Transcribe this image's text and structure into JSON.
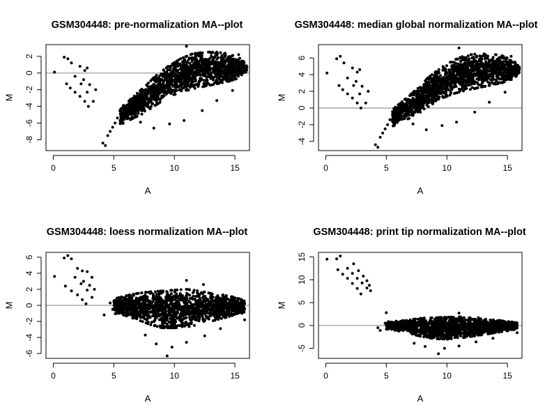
{
  "chart_data": [
    {
      "type": "scatter",
      "title": "GSM304448: pre-normalization MA--plot",
      "xlabel": "A",
      "ylabel": "M",
      "xlim": [
        -0.6,
        16.2
      ],
      "ylim": [
        -9.3,
        3.4
      ],
      "xticks": [
        0,
        5,
        10,
        15
      ],
      "yticks": [
        -8,
        -6,
        -4,
        -2,
        0,
        2
      ],
      "hline": 0,
      "series": [
        {
          "points": [
            [
              0.1,
              0.1
            ],
            [
              0.9,
              1.9
            ],
            [
              1.2,
              1.7
            ],
            [
              1.5,
              1.2
            ],
            [
              2.2,
              0.8
            ],
            [
              2.6,
              0.3
            ],
            [
              2.8,
              0.6
            ],
            [
              1.1,
              -1.3
            ],
            [
              1.4,
              -1.8
            ],
            [
              1.8,
              -2.3
            ],
            [
              2.2,
              -2.8
            ],
            [
              2.6,
              -3.4
            ],
            [
              2.9,
              -4.0
            ],
            [
              1.8,
              -0.4
            ],
            [
              2.3,
              -1.3
            ],
            [
              2.8,
              -2.3
            ],
            [
              3.3,
              -3.4
            ],
            [
              2.5,
              -0.8
            ],
            [
              3.0,
              -1.4
            ],
            [
              3.5,
              -2.0
            ],
            [
              4.1,
              -8.4
            ],
            [
              4.3,
              -8.7
            ],
            [
              4.5,
              -7.5
            ],
            [
              4.7,
              -7.0
            ],
            [
              4.9,
              -6.5
            ],
            [
              5.1,
              -6.0
            ],
            [
              5.3,
              -5.4
            ],
            [
              7.2,
              -5.9
            ],
            [
              8.3,
              -6.6
            ],
            [
              9.6,
              -6.1
            ],
            [
              10.8,
              -5.7
            ],
            [
              12.3,
              -4.5
            ],
            [
              13.5,
              -3.3
            ],
            [
              14.8,
              -2.1
            ],
            [
              11.0,
              3.2
            ],
            [
              12.2,
              2.1
            ],
            [
              15.3,
              2.2
            ]
          ]
        },
        {
          "band_x": [
            5.5,
            6.5,
            7.5,
            8.5,
            9.5,
            10.5,
            11.5,
            12.5,
            13.5,
            14.5,
            15.5,
            16.0
          ],
          "band_lo": [
            -6.2,
            -5.5,
            -4.8,
            -3.8,
            -2.9,
            -2.3,
            -1.9,
            -1.6,
            -1.3,
            -1.0,
            -0.5,
            0.2
          ],
          "band_hi": [
            -4.2,
            -3.0,
            -1.7,
            -0.3,
            0.8,
            1.7,
            2.3,
            2.5,
            2.5,
            2.3,
            1.7,
            0.9
          ]
        }
      ]
    },
    {
      "type": "scatter",
      "title": "GSM304448: median global normalization MA--plot",
      "xlabel": "A",
      "ylabel": "M",
      "xlim": [
        -0.6,
        16.2
      ],
      "ylim": [
        -5.1,
        7.6
      ],
      "xticks": [
        0,
        5,
        10,
        15
      ],
      "yticks": [
        -4,
        -2,
        0,
        2,
        4,
        6
      ],
      "hline": 0,
      "series": [
        {
          "points": [
            [
              0.1,
              4.2
            ],
            [
              0.9,
              5.9
            ],
            [
              1.2,
              6.2
            ],
            [
              1.5,
              5.4
            ],
            [
              2.2,
              4.8
            ],
            [
              2.6,
              4.3
            ],
            [
              2.8,
              4.6
            ],
            [
              1.1,
              2.7
            ],
            [
              1.4,
              2.2
            ],
            [
              1.8,
              1.7
            ],
            [
              2.2,
              1.2
            ],
            [
              2.6,
              0.6
            ],
            [
              2.9,
              0.0
            ],
            [
              1.8,
              3.6
            ],
            [
              2.3,
              2.7
            ],
            [
              2.8,
              1.7
            ],
            [
              3.3,
              0.6
            ],
            [
              2.5,
              3.2
            ],
            [
              3.0,
              2.6
            ],
            [
              3.5,
              2.0
            ],
            [
              4.1,
              -4.4
            ],
            [
              4.3,
              -4.7
            ],
            [
              4.5,
              -3.5
            ],
            [
              4.7,
              -3.0
            ],
            [
              4.9,
              -2.5
            ],
            [
              5.1,
              -2.0
            ],
            [
              5.3,
              -1.4
            ],
            [
              7.2,
              -1.9
            ],
            [
              8.3,
              -2.6
            ],
            [
              9.6,
              -2.1
            ],
            [
              10.8,
              -1.7
            ],
            [
              12.3,
              -0.5
            ],
            [
              13.5,
              0.7
            ],
            [
              14.8,
              1.9
            ],
            [
              11.0,
              7.2
            ],
            [
              12.2,
              6.1
            ],
            [
              15.3,
              6.2
            ]
          ]
        },
        {
          "band_x": [
            5.5,
            6.5,
            7.5,
            8.5,
            9.5,
            10.5,
            11.5,
            12.5,
            13.5,
            14.5,
            15.5,
            16.0
          ],
          "band_lo": [
            -2.2,
            -1.5,
            -0.8,
            0.2,
            1.1,
            1.7,
            2.1,
            2.4,
            2.7,
            3.0,
            3.5,
            4.2
          ],
          "band_hi": [
            -0.2,
            1.0,
            2.3,
            3.7,
            4.8,
            5.7,
            6.3,
            6.5,
            6.5,
            6.3,
            5.7,
            4.9
          ]
        }
      ]
    },
    {
      "type": "scatter",
      "title": "GSM304448: loess normalization MA--plot",
      "xlabel": "A",
      "ylabel": "M",
      "xlim": [
        -0.6,
        16.2
      ],
      "ylim": [
        -6.6,
        6.6
      ],
      "xticks": [
        0,
        5,
        10,
        15
      ],
      "yticks": [
        -6,
        -4,
        -2,
        0,
        2,
        4,
        6
      ],
      "hline": 0,
      "series": [
        {
          "points": [
            [
              0.1,
              3.6
            ],
            [
              0.9,
              5.9
            ],
            [
              1.2,
              6.2
            ],
            [
              1.5,
              5.8
            ],
            [
              2.0,
              4.6
            ],
            [
              2.4,
              4.3
            ],
            [
              2.8,
              4.2
            ],
            [
              1.0,
              2.4
            ],
            [
              1.5,
              1.8
            ],
            [
              2.0,
              1.3
            ],
            [
              2.4,
              0.7
            ],
            [
              2.7,
              0.2
            ],
            [
              1.8,
              3.5
            ],
            [
              2.3,
              2.7
            ],
            [
              2.8,
              1.9
            ],
            [
              3.2,
              1.0
            ],
            [
              2.5,
              3.0
            ],
            [
              3.0,
              2.5
            ],
            [
              3.4,
              2.0
            ],
            [
              3.2,
              3.5
            ],
            [
              4.2,
              -1.2
            ],
            [
              4.7,
              0.3
            ],
            [
              4.9,
              -0.5
            ],
            [
              7.6,
              -3.7
            ],
            [
              8.5,
              -4.8
            ],
            [
              9.4,
              -6.3
            ],
            [
              9.8,
              -5.2
            ],
            [
              11.0,
              -4.6
            ],
            [
              12.5,
              -3.8
            ],
            [
              13.8,
              -2.9
            ],
            [
              15.8,
              -1.8
            ],
            [
              11.0,
              3.1
            ],
            [
              12.4,
              2.6
            ]
          ]
        },
        {
          "band_x": [
            5.0,
            6.0,
            7.0,
            8.0,
            9.0,
            10.0,
            11.0,
            12.0,
            13.0,
            14.0,
            15.0,
            15.8
          ],
          "band_lo": [
            -1.0,
            -1.3,
            -1.8,
            -2.4,
            -2.8,
            -2.8,
            -2.7,
            -2.4,
            -2.0,
            -1.6,
            -1.2,
            -0.9
          ],
          "band_hi": [
            0.8,
            1.2,
            1.5,
            1.7,
            1.8,
            1.9,
            2.0,
            1.8,
            1.5,
            1.3,
            1.0,
            0.6
          ]
        }
      ]
    },
    {
      "type": "scatter",
      "title": "GSM304448: print tip normalization MA--plot",
      "xlabel": "A",
      "ylabel": "M",
      "xlim": [
        -0.6,
        16.2
      ],
      "ylim": [
        -7.2,
        16.0
      ],
      "xticks": [
        0,
        5,
        10,
        15
      ],
      "yticks": [
        -5,
        0,
        5,
        10,
        15
      ],
      "hline": 0,
      "series": [
        {
          "points": [
            [
              0.1,
              14.5
            ],
            [
              0.9,
              14.6
            ],
            [
              1.2,
              15.2
            ],
            [
              1.0,
              12.2
            ],
            [
              1.4,
              11.2
            ],
            [
              1.8,
              10.3
            ],
            [
              2.2,
              9.2
            ],
            [
              2.6,
              8.1
            ],
            [
              2.9,
              6.9
            ],
            [
              1.8,
              12.5
            ],
            [
              2.2,
              11.4
            ],
            [
              2.6,
              10.3
            ],
            [
              3.0,
              9.3
            ],
            [
              3.4,
              8.2
            ],
            [
              2.3,
              13.5
            ],
            [
              2.7,
              12.0
            ],
            [
              3.1,
              10.8
            ],
            [
              3.4,
              9.8
            ],
            [
              3.6,
              8.8
            ],
            [
              3.7,
              7.6
            ],
            [
              4.3,
              -0.5
            ],
            [
              4.5,
              -1.1
            ],
            [
              4.9,
              0.5
            ],
            [
              5.0,
              2.8
            ],
            [
              7.3,
              -3.9
            ],
            [
              8.2,
              -4.6
            ],
            [
              9.3,
              -6.2
            ],
            [
              9.8,
              -5.0
            ],
            [
              11.0,
              -4.5
            ],
            [
              12.4,
              -3.6
            ],
            [
              13.8,
              -2.8
            ],
            [
              15.8,
              -1.6
            ],
            [
              11.0,
              2.7
            ],
            [
              12.6,
              1.7
            ]
          ]
        },
        {
          "band_x": [
            5.0,
            6.0,
            7.0,
            8.0,
            9.0,
            10.0,
            11.0,
            12.0,
            13.0,
            14.0,
            15.0,
            15.8
          ],
          "band_lo": [
            -0.8,
            -1.2,
            -1.8,
            -2.5,
            -2.9,
            -3.0,
            -2.8,
            -2.4,
            -2.0,
            -1.6,
            -1.2,
            -0.8
          ],
          "band_hi": [
            0.8,
            1.0,
            1.3,
            1.6,
            1.7,
            1.8,
            1.9,
            1.7,
            1.4,
            1.2,
            0.9,
            0.6
          ]
        }
      ]
    }
  ]
}
